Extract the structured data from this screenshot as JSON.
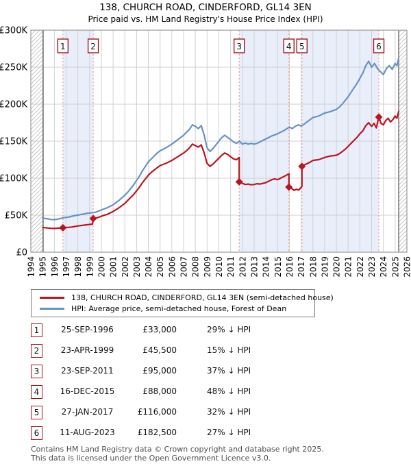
{
  "title": {
    "line1": "138, CHURCH ROAD, CINDERFORD, GL14 3EN",
    "line2": "Price paid vs. HM Land Registry's House Price Index (HPI)"
  },
  "colors": {
    "property_line": "#bb1420",
    "hpi_line": "#6691c8",
    "band": "#e9effa",
    "grid": "#d0d0d0",
    "frame": "#9a9a9a",
    "hatch": "#c6c6c6",
    "hatch_edge": "#555555",
    "dotted_marker_line": "#f58f8f",
    "badge_border": "#a31019",
    "diamond": "#bb1420"
  },
  "chart_data": {
    "type": "line",
    "title": "138, CHURCH ROAD, CINDERFORD, GL14 3EN",
    "subtitle": "Price paid vs. HM Land Registry's House Price Index (HPI)",
    "x_range": [
      1994,
      2026
    ],
    "y_max": 300,
    "y_unit": "thousand GBP",
    "grid": true,
    "y_ticks": [
      {
        "v": 0,
        "label": "£0"
      },
      {
        "v": 50,
        "label": "£50K"
      },
      {
        "v": 100,
        "label": "£100K"
      },
      {
        "v": 150,
        "label": "£150K"
      },
      {
        "v": 200,
        "label": "£200K"
      },
      {
        "v": 250,
        "label": "£250K"
      },
      {
        "v": 300,
        "label": "£300K"
      }
    ],
    "x_ticks": [
      1994,
      1995,
      1996,
      1997,
      1998,
      1999,
      2000,
      2001,
      2002,
      2003,
      2004,
      2005,
      2006,
      2007,
      2008,
      2009,
      2010,
      2011,
      2012,
      2013,
      2014,
      2015,
      2016,
      2017,
      2018,
      2019,
      2020,
      2021,
      2022,
      2023,
      2024,
      2025,
      2026
    ],
    "hatch_regions": [
      [
        1994,
        1995.05
      ],
      [
        2025.3,
        2026
      ]
    ],
    "ownership_bands": [
      [
        1996.73,
        1999.31
      ],
      [
        2011.73,
        2015.96
      ],
      [
        2017.07,
        2023.61
      ]
    ],
    "transactions": [
      {
        "n": "1",
        "x": 1996.73,
        "price_k": 33
      },
      {
        "n": "2",
        "x": 1999.31,
        "price_k": 45.5
      },
      {
        "n": "3",
        "x": 2011.73,
        "price_k": 95
      },
      {
        "n": "4",
        "x": 2015.96,
        "price_k": 88
      },
      {
        "n": "5",
        "x": 2017.07,
        "price_k": 116
      },
      {
        "n": "6",
        "x": 2023.61,
        "price_k": 182.5
      }
    ],
    "series": [
      {
        "name": "138, CHURCH ROAD, CINDERFORD, GL14 3EN (semi-detached house)",
        "color": "#bb1420",
        "points": [
          [
            1995.0,
            33.5
          ],
          [
            1995.25,
            33
          ],
          [
            1995.5,
            32.6
          ],
          [
            1995.75,
            32.2
          ],
          [
            1996.0,
            32
          ],
          [
            1996.25,
            32.4
          ],
          [
            1996.5,
            32.8
          ],
          [
            1996.73,
            33
          ],
          [
            1997.0,
            33.3
          ],
          [
            1997.25,
            33.6
          ],
          [
            1997.5,
            34
          ],
          [
            1997.75,
            34.8
          ],
          [
            1998.0,
            35.5
          ],
          [
            1998.25,
            36
          ],
          [
            1998.5,
            36.5
          ],
          [
            1998.75,
            37
          ],
          [
            1999.0,
            37.5
          ],
          [
            1999.25,
            38
          ],
          [
            1999.31,
            45.5
          ],
          [
            1999.5,
            46
          ],
          [
            1999.75,
            47
          ],
          [
            2000.0,
            48.5
          ],
          [
            2000.25,
            50
          ],
          [
            2000.5,
            51
          ],
          [
            2000.75,
            53
          ],
          [
            2001.0,
            55
          ],
          [
            2001.25,
            57.5
          ],
          [
            2001.5,
            60
          ],
          [
            2001.75,
            63
          ],
          [
            2002.0,
            66
          ],
          [
            2002.25,
            70
          ],
          [
            2002.5,
            74
          ],
          [
            2002.75,
            78
          ],
          [
            2003.0,
            83
          ],
          [
            2003.25,
            88
          ],
          [
            2003.5,
            94
          ],
          [
            2003.75,
            99
          ],
          [
            2004.0,
            104
          ],
          [
            2004.25,
            108
          ],
          [
            2004.5,
            111
          ],
          [
            2004.75,
            114
          ],
          [
            2005.0,
            117
          ],
          [
            2005.25,
            118.5
          ],
          [
            2005.5,
            120
          ],
          [
            2005.75,
            122
          ],
          [
            2006.0,
            124
          ],
          [
            2006.25,
            126.5
          ],
          [
            2006.5,
            129
          ],
          [
            2006.75,
            131.5
          ],
          [
            2007.0,
            134
          ],
          [
            2007.25,
            137
          ],
          [
            2007.5,
            141
          ],
          [
            2007.75,
            146
          ],
          [
            2008.0,
            144
          ],
          [
            2008.25,
            142
          ],
          [
            2008.5,
            145
          ],
          [
            2008.75,
            134
          ],
          [
            2009.0,
            120
          ],
          [
            2009.25,
            116
          ],
          [
            2009.5,
            119
          ],
          [
            2009.75,
            123
          ],
          [
            2010.0,
            127
          ],
          [
            2010.25,
            131
          ],
          [
            2010.5,
            134
          ],
          [
            2010.75,
            132
          ],
          [
            2011.0,
            129
          ],
          [
            2011.25,
            126
          ],
          [
            2011.5,
            125
          ],
          [
            2011.73,
            128
          ],
          [
            2011.73,
            95
          ],
          [
            2012.0,
            93
          ],
          [
            2012.25,
            91.5
          ],
          [
            2012.5,
            92
          ],
          [
            2012.75,
            91
          ],
          [
            2013.0,
            91.5
          ],
          [
            2013.25,
            92.5
          ],
          [
            2013.5,
            92
          ],
          [
            2013.75,
            93
          ],
          [
            2014.0,
            94
          ],
          [
            2014.25,
            96
          ],
          [
            2014.5,
            98
          ],
          [
            2014.75,
            99
          ],
          [
            2015.0,
            98
          ],
          [
            2015.25,
            100
          ],
          [
            2015.5,
            102
          ],
          [
            2015.75,
            104
          ],
          [
            2015.96,
            106
          ],
          [
            2015.96,
            88
          ],
          [
            2016.2,
            86
          ],
          [
            2016.4,
            83.5
          ],
          [
            2016.6,
            85
          ],
          [
            2016.8,
            84
          ],
          [
            2017.07,
            89
          ],
          [
            2017.07,
            116
          ],
          [
            2017.25,
            118
          ],
          [
            2017.5,
            119.5
          ],
          [
            2017.75,
            121.5
          ],
          [
            2018.0,
            124
          ],
          [
            2018.25,
            124.5
          ],
          [
            2018.5,
            125
          ],
          [
            2018.75,
            126.5
          ],
          [
            2019.0,
            128
          ],
          [
            2019.25,
            129
          ],
          [
            2019.5,
            130
          ],
          [
            2019.75,
            130.5
          ],
          [
            2020.0,
            131
          ],
          [
            2020.25,
            133
          ],
          [
            2020.5,
            136
          ],
          [
            2020.75,
            139
          ],
          [
            2021.0,
            143
          ],
          [
            2021.25,
            147
          ],
          [
            2021.5,
            151
          ],
          [
            2021.75,
            155
          ],
          [
            2022.0,
            160
          ],
          [
            2022.25,
            164
          ],
          [
            2022.5,
            171
          ],
          [
            2022.75,
            175
          ],
          [
            2023.0,
            170
          ],
          [
            2023.2,
            174
          ],
          [
            2023.4,
            168
          ],
          [
            2023.61,
            182.5
          ],
          [
            2023.8,
            174
          ],
          [
            2024.0,
            172
          ],
          [
            2024.2,
            178
          ],
          [
            2024.4,
            181
          ],
          [
            2024.6,
            176
          ],
          [
            2024.8,
            179
          ],
          [
            2025.0,
            184
          ],
          [
            2025.15,
            181
          ],
          [
            2025.3,
            190
          ]
        ]
      },
      {
        "name": "HPI: Average price, semi-detached house, Forest of Dean",
        "color": "#6691c8",
        "points": [
          [
            1995.0,
            46
          ],
          [
            1995.25,
            45.5
          ],
          [
            1995.5,
            44.8
          ],
          [
            1995.75,
            44.2
          ],
          [
            1996.0,
            44
          ],
          [
            1996.25,
            44.5
          ],
          [
            1996.5,
            45.5
          ],
          [
            1996.75,
            46.5
          ],
          [
            1997.0,
            47
          ],
          [
            1997.25,
            47.5
          ],
          [
            1997.5,
            48.5
          ],
          [
            1997.75,
            49.5
          ],
          [
            1998.0,
            50
          ],
          [
            1998.25,
            51
          ],
          [
            1998.5,
            51.5
          ],
          [
            1998.75,
            52.5
          ],
          [
            1999.0,
            53
          ],
          [
            1999.25,
            53.3
          ],
          [
            1999.5,
            54
          ],
          [
            1999.75,
            55.5
          ],
          [
            2000.0,
            57
          ],
          [
            2000.25,
            58.5
          ],
          [
            2000.5,
            60
          ],
          [
            2000.75,
            62
          ],
          [
            2001.0,
            64
          ],
          [
            2001.25,
            67
          ],
          [
            2001.5,
            70
          ],
          [
            2001.75,
            73.5
          ],
          [
            2002.0,
            77
          ],
          [
            2002.25,
            81
          ],
          [
            2002.5,
            86
          ],
          [
            2002.75,
            91
          ],
          [
            2003.0,
            97
          ],
          [
            2003.25,
            103
          ],
          [
            2003.5,
            110
          ],
          [
            2003.75,
            116
          ],
          [
            2004.0,
            122
          ],
          [
            2004.25,
            126
          ],
          [
            2004.5,
            130
          ],
          [
            2004.75,
            134
          ],
          [
            2005.0,
            137
          ],
          [
            2005.25,
            139
          ],
          [
            2005.5,
            141
          ],
          [
            2005.75,
            143.5
          ],
          [
            2006.0,
            146
          ],
          [
            2006.25,
            149
          ],
          [
            2006.5,
            152
          ],
          [
            2006.75,
            155
          ],
          [
            2007.0,
            158
          ],
          [
            2007.25,
            162
          ],
          [
            2007.5,
            166
          ],
          [
            2007.75,
            172
          ],
          [
            2008.0,
            170
          ],
          [
            2008.25,
            167
          ],
          [
            2008.5,
            171
          ],
          [
            2008.75,
            158
          ],
          [
            2009.0,
            141
          ],
          [
            2009.25,
            136
          ],
          [
            2009.5,
            140
          ],
          [
            2009.75,
            145
          ],
          [
            2010.0,
            150
          ],
          [
            2010.25,
            155
          ],
          [
            2010.5,
            158
          ],
          [
            2010.75,
            155
          ],
          [
            2011.0,
            152
          ],
          [
            2011.25,
            149
          ],
          [
            2011.5,
            147
          ],
          [
            2011.75,
            150
          ],
          [
            2012.0,
            146
          ],
          [
            2012.25,
            147.5
          ],
          [
            2012.5,
            146
          ],
          [
            2012.75,
            147
          ],
          [
            2013.0,
            146
          ],
          [
            2013.25,
            147
          ],
          [
            2013.5,
            149
          ],
          [
            2013.75,
            151
          ],
          [
            2014.0,
            153
          ],
          [
            2014.25,
            155
          ],
          [
            2014.5,
            157
          ],
          [
            2014.75,
            158.5
          ],
          [
            2015.0,
            160
          ],
          [
            2015.25,
            162
          ],
          [
            2015.5,
            164
          ],
          [
            2015.75,
            166.5
          ],
          [
            2016.0,
            169
          ],
          [
            2016.25,
            167
          ],
          [
            2016.5,
            170
          ],
          [
            2016.75,
            172
          ],
          [
            2017.0,
            170.5
          ],
          [
            2017.25,
            173
          ],
          [
            2017.5,
            176
          ],
          [
            2017.75,
            179
          ],
          [
            2018.0,
            182
          ],
          [
            2018.25,
            183
          ],
          [
            2018.5,
            184
          ],
          [
            2018.75,
            186
          ],
          [
            2019.0,
            188
          ],
          [
            2019.25,
            189
          ],
          [
            2019.5,
            190
          ],
          [
            2019.75,
            191.5
          ],
          [
            2020.0,
            193
          ],
          [
            2020.25,
            196
          ],
          [
            2020.5,
            200
          ],
          [
            2020.75,
            205
          ],
          [
            2021.0,
            210
          ],
          [
            2021.25,
            216
          ],
          [
            2021.5,
            222
          ],
          [
            2021.75,
            228
          ],
          [
            2022.0,
            235
          ],
          [
            2022.25,
            242
          ],
          [
            2022.5,
            252
          ],
          [
            2022.75,
            258
          ],
          [
            2023.0,
            250
          ],
          [
            2023.25,
            255
          ],
          [
            2023.5,
            248
          ],
          [
            2023.75,
            244
          ],
          [
            2024.0,
            240
          ],
          [
            2024.25,
            248
          ],
          [
            2024.5,
            252
          ],
          [
            2024.75,
            247
          ],
          [
            2025.0,
            255
          ],
          [
            2025.15,
            252
          ],
          [
            2025.3,
            262
          ]
        ]
      }
    ],
    "legend_position": "below"
  },
  "legend": {
    "property_label": "138, CHURCH ROAD, CINDERFORD, GL14 3EN (semi-detached house)",
    "hpi_label": "HPI: Average price, semi-detached house, Forest of Dean"
  },
  "table": {
    "rows": [
      {
        "num": "1",
        "date": "25-SEP-1996",
        "price": "£33,000",
        "vs_hpi": "29% ↓ HPI"
      },
      {
        "num": "2",
        "date": "23-APR-1999",
        "price": "£45,500",
        "vs_hpi": "15% ↓ HPI"
      },
      {
        "num": "3",
        "date": "23-SEP-2011",
        "price": "£95,000",
        "vs_hpi": "37% ↓ HPI"
      },
      {
        "num": "4",
        "date": "16-DEC-2015",
        "price": "£88,000",
        "vs_hpi": "48% ↓ HPI"
      },
      {
        "num": "5",
        "date": "27-JAN-2017",
        "price": "£116,000",
        "vs_hpi": "32% ↓ HPI"
      },
      {
        "num": "6",
        "date": "11-AUG-2023",
        "price": "£182,500",
        "vs_hpi": "27% ↓ HPI"
      }
    ]
  },
  "footer": {
    "line1": "Contains HM Land Registry data © Crown copyright and database right 2025.",
    "line2": "This data is licensed under the Open Government Licence v3.0."
  }
}
